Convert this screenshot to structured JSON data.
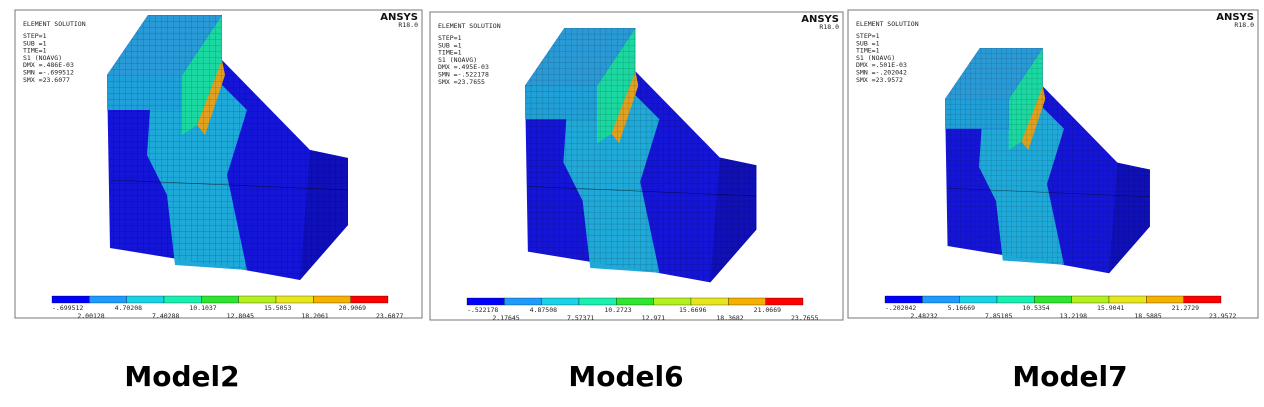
{
  "panels": [
    {
      "header": "ELEMENT SOLUTION",
      "info": [
        "STEP=1",
        "SUB =1",
        "TIME=1",
        "S1       (NOAVG)",
        "DMX =.486E-03",
        "SMN =-.699512",
        "SMX =23.6077"
      ],
      "brand": "ANSYS",
      "version": "R18.0",
      "legend": [
        "-.699512",
        "2.00128",
        "4.70208",
        "7.40288",
        "10.1037",
        "12.8045",
        "15.5053",
        "18.2061",
        "20.9069",
        "23.6077"
      ],
      "caption": "Model2"
    },
    {
      "header": "ELEMENT SOLUTION",
      "info": [
        "STEP=1",
        "SUB =1",
        "TIME=1",
        "S1       (NOAVG)",
        "DMX =.495E-03",
        "SMN =-.522178",
        "SMX =23.7655"
      ],
      "brand": "ANSYS",
      "version": "R18.0",
      "legend": [
        "-.522178",
        "2.17645",
        "4.87508",
        "7.57371",
        "10.2723",
        "12.971",
        "15.6696",
        "18.3682",
        "21.0669",
        "23.7655"
      ],
      "caption": "Model6"
    },
    {
      "header": "ELEMENT SOLUTION",
      "info": [
        "STEP=1",
        "SUB =1",
        "TIME=1",
        "S1       (NOAVG)",
        "DMX =.501E-03",
        "SMN =-.202042",
        "SMX =23.9572"
      ],
      "brand": "ANSYS",
      "version": "R18.0",
      "legend": [
        "-.202042",
        "2.48232",
        "5.16669",
        "7.85105",
        "10.5354",
        "13.2198",
        "15.9041",
        "18.5885",
        "21.2729",
        "23.9572"
      ],
      "caption": "Model7"
    }
  ]
}
